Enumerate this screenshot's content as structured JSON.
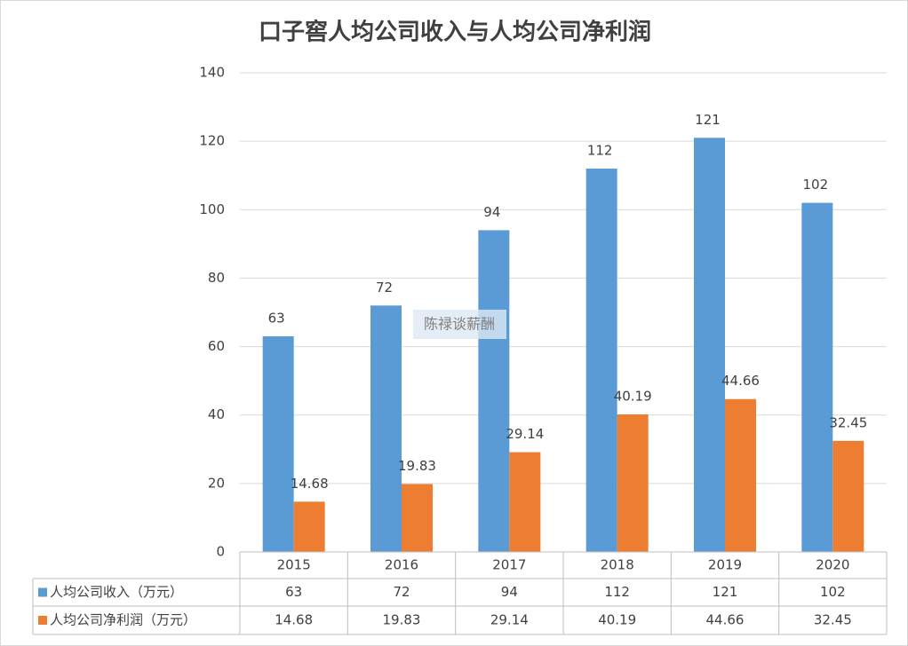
{
  "chart_data": {
    "type": "bar",
    "title": "口子窖人均公司收入与人均公司净利润",
    "categories": [
      "2015",
      "2016",
      "2017",
      "2018",
      "2019",
      "2020"
    ],
    "series": [
      {
        "name": "人均公司收入（万元）",
        "color": "#5b9bd5",
        "values": [
          63,
          72,
          94,
          112,
          121,
          102
        ]
      },
      {
        "name": "人均公司净利润（万元）",
        "color": "#ed7d31",
        "values": [
          14.68,
          19.83,
          29.14,
          40.19,
          44.66,
          32.45
        ]
      }
    ],
    "ylim": [
      0,
      140
    ],
    "yticks": [
      0,
      20,
      40,
      60,
      80,
      100,
      120,
      140
    ],
    "grid": true,
    "data_table": true,
    "watermark": "陈禄谈薪酬"
  }
}
